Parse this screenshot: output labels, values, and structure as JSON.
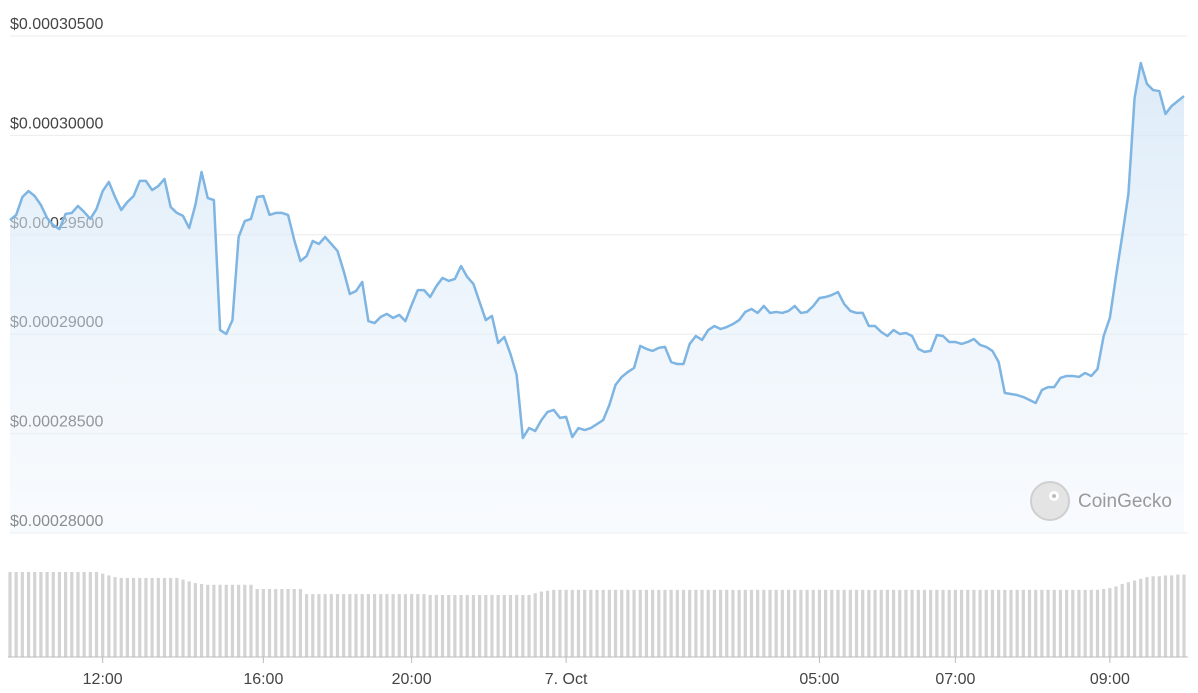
{
  "chart_data": {
    "type": "line",
    "color": "#7eb5e2",
    "ylim": [
      0.00028,
      0.000305
    ],
    "yticks": [
      {
        "value": 0.00028,
        "label": "$0.00028000"
      },
      {
        "value": 0.000285,
        "label": "$0.00028500"
      },
      {
        "value": 0.00029,
        "label": "$0.00029000"
      },
      {
        "value": 0.000295,
        "label": "$0.00029500"
      },
      {
        "value": 0.0003,
        "label": "$0.00030000"
      },
      {
        "value": 0.000305,
        "label": "$0.00030500"
      }
    ],
    "grid": true,
    "watermark": "CoinGecko",
    "categories": [
      null,
      null,
      null,
      null,
      null,
      null,
      null,
      null,
      null,
      null,
      null,
      null,
      null,
      null,
      null,
      "12:00",
      null,
      null,
      null,
      null,
      null,
      null,
      null,
      null,
      null,
      null,
      null,
      null,
      null,
      null,
      null,
      null,
      null,
      null,
      null,
      null,
      null,
      null,
      null,
      null,
      null,
      "16:00",
      null,
      null,
      null,
      null,
      null,
      null,
      null,
      null,
      null,
      null,
      null,
      null,
      null,
      null,
      null,
      null,
      null,
      null,
      null,
      null,
      null,
      null,
      null,
      "20:00",
      null,
      null,
      null,
      null,
      null,
      null,
      null,
      null,
      null,
      null,
      null,
      null,
      null,
      null,
      null,
      null,
      null,
      null,
      null,
      null,
      null,
      null,
      null,
      null,
      "7. Oct",
      null,
      null,
      null,
      null,
      null,
      null,
      null,
      null,
      null,
      null,
      null,
      null,
      null,
      null,
      null,
      null,
      null,
      null,
      null,
      null,
      null,
      null,
      null,
      null,
      null,
      null,
      null,
      null,
      null,
      null,
      null,
      null,
      null,
      null,
      null,
      null,
      null,
      null,
      null,
      null,
      "05:00",
      null,
      null,
      null,
      null,
      null,
      null,
      null,
      null,
      null,
      null,
      null,
      null,
      null,
      null,
      null,
      null,
      null,
      null,
      null,
      null,
      null,
      "07:00",
      null,
      null,
      null,
      null,
      null,
      null,
      null,
      null,
      null,
      null,
      null,
      null,
      null,
      null,
      null,
      null,
      null,
      null,
      null,
      null,
      null,
      null,
      null,
      null,
      "09:00",
      null,
      null,
      null,
      null,
      null,
      null,
      null,
      null,
      null,
      null,
      null,
      null
    ],
    "values": [
      0.00029574,
      0.000296,
      0.0002969,
      0.0002972,
      0.00029695,
      0.0002965,
      0.00029585,
      0.00029549,
      0.00029529,
      0.00029605,
      0.0002961,
      0.00029645,
      0.00029615,
      0.0002958,
      0.0002963,
      0.0002972,
      0.00029766,
      0.0002969,
      0.00029625,
      0.00029665,
      0.00029695,
      0.00029771,
      0.00029771,
      0.00029725,
      0.00029745,
      0.00029781,
      0.0002964,
      0.0002961,
      0.00029595,
      0.00029534,
      0.0002965,
      0.00029816,
      0.00029685,
      0.00029675,
      0.00029021,
      0.00029001,
      0.00029071,
      0.00029489,
      0.00029569,
      0.0002958,
      0.0002969,
      0.00029695,
      0.000296,
      0.0002961,
      0.0002961,
      0.000296,
      0.00029474,
      0.00029368,
      0.00029393,
      0.00029469,
      0.00029454,
      0.00029489,
      0.00029454,
      0.00029419,
      0.00029318,
      0.00029202,
      0.00029217,
      0.00029263,
      0.00029066,
      0.00029056,
      0.00029087,
      0.00029102,
      0.00029082,
      0.00029097,
      0.00029066,
      0.00029147,
      0.00029222,
      0.00029222,
      0.00029187,
      0.00029242,
      0.00029283,
      0.00029268,
      0.00029278,
      0.00029343,
      0.00029288,
      0.00029253,
      0.00029162,
      0.00029071,
      0.00029092,
      0.00028956,
      0.00028986,
      0.000289,
      0.00028795,
      0.00028478,
      0.00028528,
      0.00028513,
      0.00028568,
      0.00028609,
      0.00028619,
      0.00028579,
      0.00028584,
      0.00028483,
      0.00028528,
      0.00028518,
      0.00028528,
      0.00028548,
      0.00028568,
      0.00028644,
      0.00028745,
      0.00028785,
      0.0002881,
      0.0002883,
      0.00028941,
      0.00028926,
      0.00028916,
      0.00028931,
      0.00028936,
      0.0002886,
      0.0002885,
      0.0002885,
      0.00028951,
      0.00028991,
      0.00028971,
      0.00029021,
      0.00029041,
      0.00029026,
      0.00029036,
      0.00029051,
      0.00029071,
      0.00029112,
      0.00029127,
      0.00029107,
      0.00029142,
      0.00029107,
      0.00029112,
      0.00029107,
      0.00029117,
      0.00029142,
      0.00029107,
      0.00029112,
      0.00029142,
      0.00029182,
      0.00029187,
      0.00029197,
      0.00029212,
      0.00029152,
      0.00029117,
      0.00029107,
      0.00029107,
      0.00029041,
      0.00029041,
      0.00029011,
      0.00028991,
      0.00029021,
      0.00029001,
      0.00029006,
      0.00028991,
      0.00028926,
      0.00028911,
      0.00028916,
      0.00028996,
      0.00028991,
      0.00028961,
      0.00028961,
      0.00028951,
      0.00028961,
      0.00028976,
      0.00028946,
      0.00028936,
      0.00028916,
      0.0002886,
      0.00028704,
      0.00028699,
      0.00028694,
      0.00028684,
      0.00028669,
      0.00028654,
      0.00028719,
      0.00028734,
      0.00028734,
      0.0002878,
      0.0002879,
      0.0002879,
      0.00028785,
      0.00028805,
      0.0002879,
      0.00028825,
      0.00028991,
      0.00029082,
      0.00029293,
      0.00029494,
      0.00029705,
      0.00030188,
      0.00030364,
      0.00030259,
      0.00030228,
      0.00030223,
      0.00030108,
      0.00030148,
      0.00030173,
      0.00030198
    ],
    "volume": {
      "color": "#d4d4d4",
      "values": [
        100,
        100,
        100,
        100,
        100,
        100,
        100,
        100,
        100,
        100,
        100,
        100,
        100,
        100,
        100,
        98,
        96,
        94,
        93,
        93,
        93,
        93,
        93,
        93,
        93,
        93,
        93,
        93,
        91,
        89,
        87,
        86,
        85,
        85,
        85,
        85,
        85,
        85,
        85,
        85,
        80,
        80,
        80,
        80,
        80,
        80,
        80,
        80,
        74,
        74,
        74,
        74,
        74,
        74,
        74,
        74,
        74,
        74,
        74,
        74,
        74,
        74,
        74,
        74,
        74,
        74,
        74,
        74,
        73,
        73,
        73,
        73,
        73,
        73,
        73,
        73,
        73,
        73,
        73,
        73,
        73,
        73,
        73,
        73,
        73,
        75,
        77,
        78,
        79,
        79,
        79,
        79,
        79,
        79,
        79,
        79,
        79,
        79,
        79,
        79,
        79,
        79,
        79,
        79,
        79,
        79,
        79,
        79,
        79,
        79,
        79,
        79,
        79,
        79,
        79,
        79,
        79,
        79,
        79,
        79,
        79,
        79,
        79,
        79,
        79,
        79,
        79,
        79,
        79,
        79,
        79,
        79,
        79,
        79,
        79,
        79,
        79,
        79,
        79,
        79,
        79,
        79,
        79,
        79,
        79,
        79,
        79,
        79,
        79,
        79,
        79,
        79,
        79,
        79,
        79,
        79,
        79,
        79,
        79,
        79,
        79,
        79,
        79,
        79,
        79,
        79,
        79,
        79,
        79,
        79,
        79,
        79,
        79,
        79,
        79,
        79,
        79,
        80,
        81,
        83,
        86,
        88,
        90,
        92,
        94,
        95,
        95,
        96,
        96,
        97,
        97
      ]
    }
  }
}
